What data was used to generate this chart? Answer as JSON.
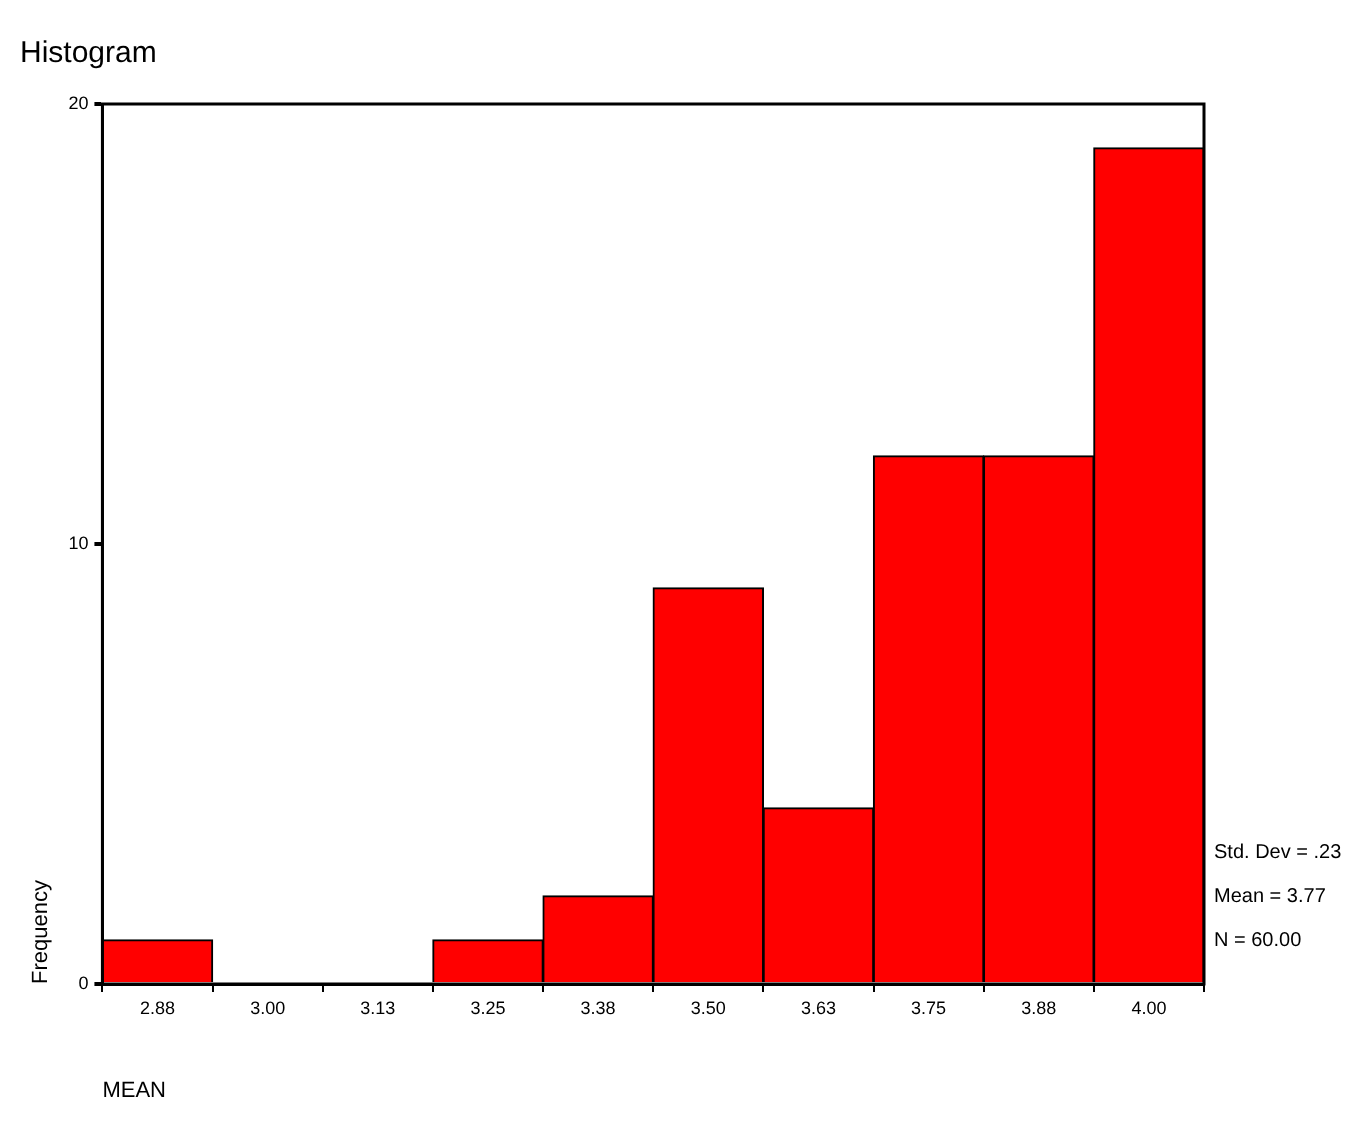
{
  "chart_data": {
    "type": "histogram",
    "title": "Histogram",
    "xlabel": "MEAN",
    "ylabel": "Frequency",
    "bins": [
      2.8125,
      2.9375,
      3.0625,
      3.1875,
      3.3125,
      3.4375,
      3.5625,
      3.6875,
      3.8125,
      3.9375,
      4.0625
    ],
    "values": [
      1,
      0,
      0,
      1,
      2,
      9,
      4,
      12,
      12,
      19
    ],
    "color": "#ff0000",
    "xlim": [
      2.8125,
      4.0625
    ],
    "xticks": [
      {
        "value": 2.875,
        "label": "2.88"
      },
      {
        "value": 3.0,
        "label": "3.00"
      },
      {
        "value": 3.125,
        "label": "3.13"
      },
      {
        "value": 3.25,
        "label": "3.25"
      },
      {
        "value": 3.375,
        "label": "3.38"
      },
      {
        "value": 3.5,
        "label": "3.50"
      },
      {
        "value": 3.625,
        "label": "3.63"
      },
      {
        "value": 3.75,
        "label": "3.75"
      },
      {
        "value": 3.875,
        "label": "3.88"
      },
      {
        "value": 4.0,
        "label": "4.00"
      }
    ],
    "ylim": [
      0,
      20
    ],
    "yticks": [
      0,
      10,
      20
    ],
    "grid": false,
    "legend": false,
    "annotations": [
      "Std. Dev = .23",
      "Mean = 3.77",
      "N = 60.00"
    ]
  }
}
